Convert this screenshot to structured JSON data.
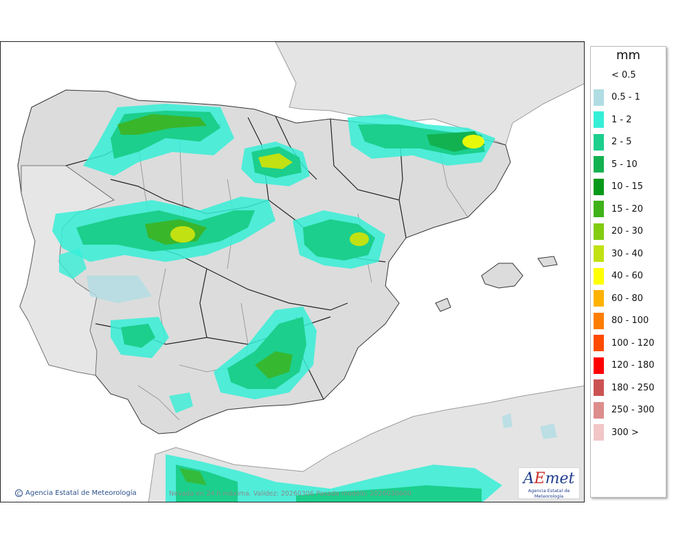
{
  "map": {
    "colors": {
      "sea": "#ffffff",
      "land": "#dcdcdc",
      "foreign_land": "#e4e4e4",
      "border": "#222222",
      "province_border": "#8c8c8c"
    }
  },
  "caption": {
    "text": "Nevada en 24 h máxima. Validez: 20260306 Pasada modelo: 2026030600"
  },
  "credit": {
    "symbol": "C",
    "text": "Agencia Estatal de Meteorología"
  },
  "logo": {
    "mark_a": "A",
    "mark_e": "E",
    "mark_rest": "met",
    "subtitle": "Agencia Estatal de Meteorología"
  },
  "legend": {
    "unit": "mm",
    "items": [
      {
        "label": "< 0.5",
        "color": "#ffffff"
      },
      {
        "label": "0.5 - 1",
        "color": "#b0dde3"
      },
      {
        "label": "1 - 2",
        "color": "#36efd7"
      },
      {
        "label": "2 - 5",
        "color": "#1ccf8c"
      },
      {
        "label": "5 - 10",
        "color": "#12b251"
      },
      {
        "label": "10 - 15",
        "color": "#07981a"
      },
      {
        "label": "15 - 20",
        "color": "#3fb21a"
      },
      {
        "label": "20 - 30",
        "color": "#82cc12"
      },
      {
        "label": "30 - 40",
        "color": "#c2e112"
      },
      {
        "label": "40 - 60",
        "color": "#ffff00"
      },
      {
        "label": "60 - 80",
        "color": "#ffb200"
      },
      {
        "label": "80 - 100",
        "color": "#ff7d00"
      },
      {
        "label": "100 - 120",
        "color": "#ff4a00"
      },
      {
        "label": "120 - 180",
        "color": "#ff0000"
      },
      {
        "label": "180 - 250",
        "color": "#cc5252"
      },
      {
        "label": "250 - 300",
        "color": "#dd8c8c"
      },
      {
        "label": "300 >",
        "color": "#f2c6c6"
      }
    ]
  }
}
